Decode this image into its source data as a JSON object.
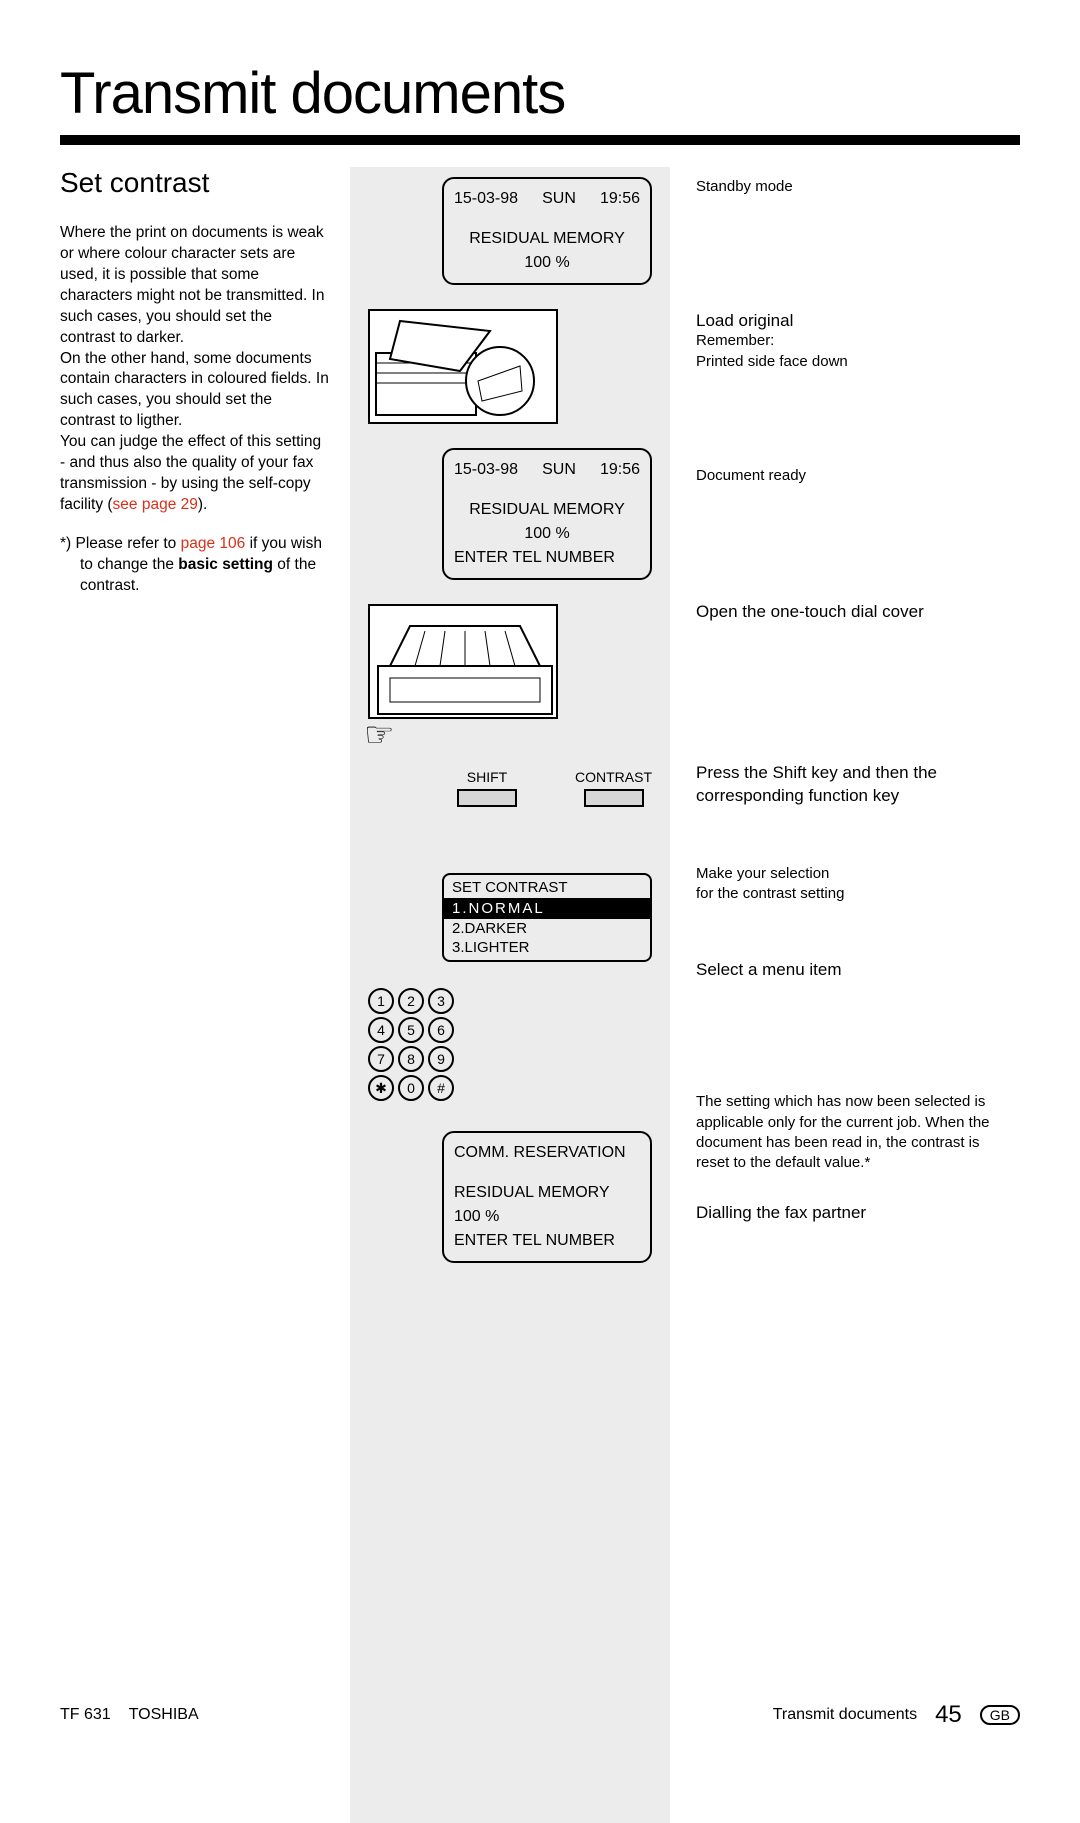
{
  "title": "Transmit documents",
  "left": {
    "subhead": "Set contrast",
    "para1": "Where the print on documents is weak or where colour character sets are used, it is possible that some characters might not be transmitted. In such cases, you should set the contrast to darker.",
    "para2": "On the other hand, some documents contain characters in coloured fields. In such cases, you should set the contrast to ligther.",
    "para3a": "You can judge the effect of this setting - and thus also the quality of your fax transmission - by using the self-copy facility (",
    "para3b": "see page 29",
    "para3c": ").",
    "foot_a": "*)  Please refer to ",
    "foot_b": "page 106",
    "foot_c": " if you wish to change the ",
    "foot_d": "basic setting",
    "foot_e": " of the contrast."
  },
  "mid": {
    "lcd1": {
      "date": "15-03-98",
      "day": "SUN",
      "time": "19:56",
      "line2": "RESIDUAL MEMORY 100 %"
    },
    "lcd2": {
      "date": "15-03-98",
      "day": "SUN",
      "time": "19:56",
      "line2": "RESIDUAL MEMORY 100 %",
      "line3": "ENTER TEL NUMBER"
    },
    "key1": "SHIFT",
    "key2": "CONTRAST",
    "contrast": {
      "title": "SET CONTRAST",
      "opt1": "1.NORMAL",
      "opt2": "2.DARKER",
      "opt3": "3.LIGHTER"
    },
    "keypad": [
      [
        "1",
        "2",
        "3"
      ],
      [
        "4",
        "5",
        "6"
      ],
      [
        "7",
        "8",
        "9"
      ],
      [
        "✱",
        "0",
        "#"
      ]
    ],
    "lcd3": {
      "line1": "COMM. RESERVATION",
      "line2": "RESIDUAL MEMORY 100 %",
      "line3": "ENTER TEL NUMBER"
    }
  },
  "right": {
    "r1": "Standby mode",
    "r2_head": "Load original",
    "r2a": "Remember:",
    "r2b": "Printed side face down",
    "r3": "Document ready",
    "r4": "Open the one-touch dial cover",
    "r5": "Press the Shift key and then the corresponding function key",
    "r6a": "Make your selection",
    "r6b": "for the contrast setting",
    "r7": "Select a menu item",
    "r8": "The setting which has now been selected is applicable only for the current job. When the document has been read in, the contrast is reset to the default value.*",
    "r9": "Dialling the fax partner"
  },
  "footer": {
    "model": "TF 631",
    "brand": "TOSHIBA",
    "section": "Transmit documents",
    "page": "45",
    "lang": "GB"
  }
}
